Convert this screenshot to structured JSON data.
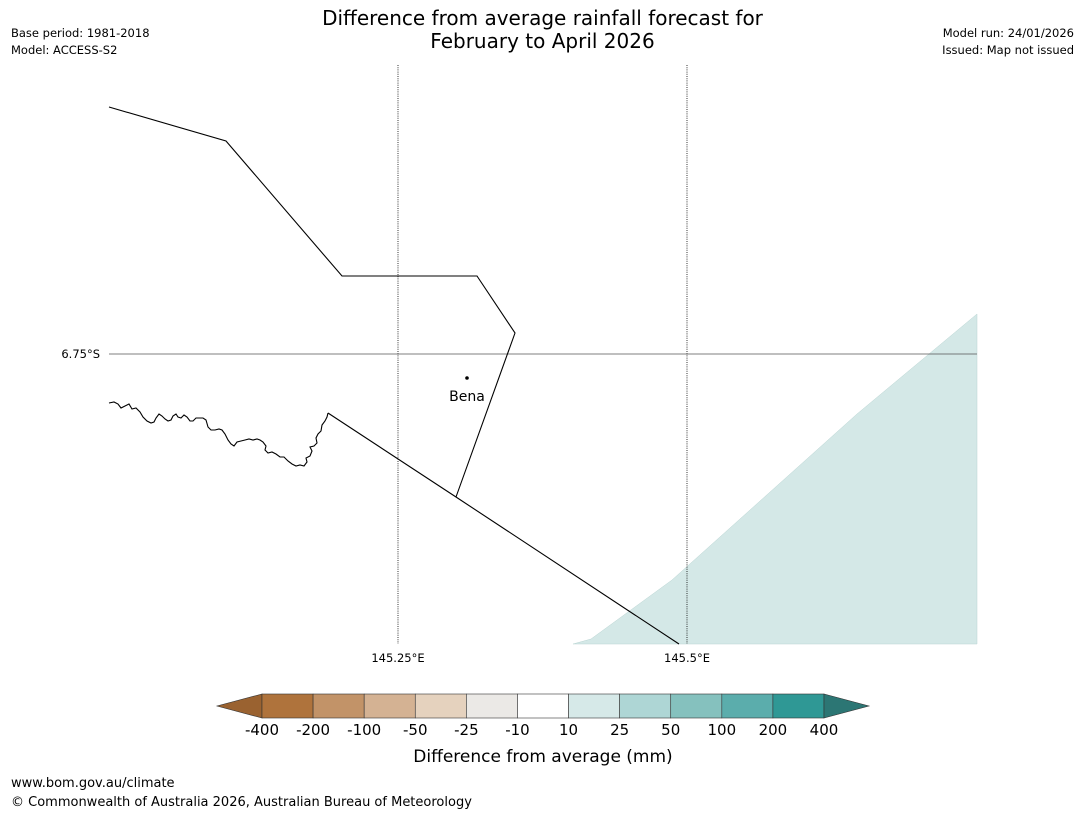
{
  "header": {
    "title_line1": "Difference from average rainfall forecast for",
    "title_line2": "February to April 2026",
    "base_period": "Base period: 1981-2018",
    "model": "Model: ACCESS-S2",
    "model_run": "Model run: 24/01/2026",
    "issued": "Issued: Map not issued"
  },
  "map": {
    "lat_label": "6.75°S",
    "lon_labels": [
      "145.25°E",
      "145.5°E"
    ],
    "place": "Bena",
    "shading_color": "#d4e8e7"
  },
  "colorbar": {
    "label": "Difference from average (mm)",
    "ticks": [
      "-400",
      "-200",
      "-100",
      "-50",
      "-25",
      "-10",
      "10",
      "25",
      "50",
      "100",
      "200",
      "400"
    ],
    "colors": [
      "#9a6230",
      "#af733c",
      "#c29368",
      "#d4b293",
      "#e5d2be",
      "#ebe9e6",
      "#ffffff",
      "#d6e9e8",
      "#aed6d5",
      "#85c1be",
      "#5badac",
      "#2f9895",
      "#2c7674"
    ]
  },
  "footer": {
    "url": "www.bom.gov.au/climate",
    "copyright": "© Commonwealth of Australia 2026, Australian Bureau of Meteorology"
  }
}
